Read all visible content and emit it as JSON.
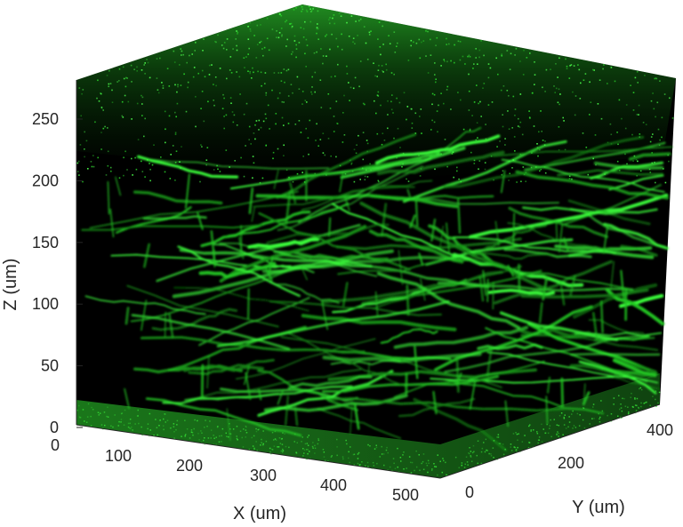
{
  "figure": {
    "z_axis": {
      "label": "Z (um)",
      "ticks": [
        "0",
        "50",
        "100",
        "150",
        "200",
        "250"
      ]
    },
    "x_axis": {
      "label": "X (um)",
      "ticks": [
        "0",
        "100",
        "200",
        "300",
        "400",
        "500"
      ]
    },
    "y_axis": {
      "label": "Y (um)",
      "ticks": [
        "0",
        "200",
        "400"
      ]
    },
    "volume": {
      "content": "3D fluorescence rendering of a vessel network",
      "fluorescence_color": "#22e022",
      "background_color": "#000000"
    }
  }
}
